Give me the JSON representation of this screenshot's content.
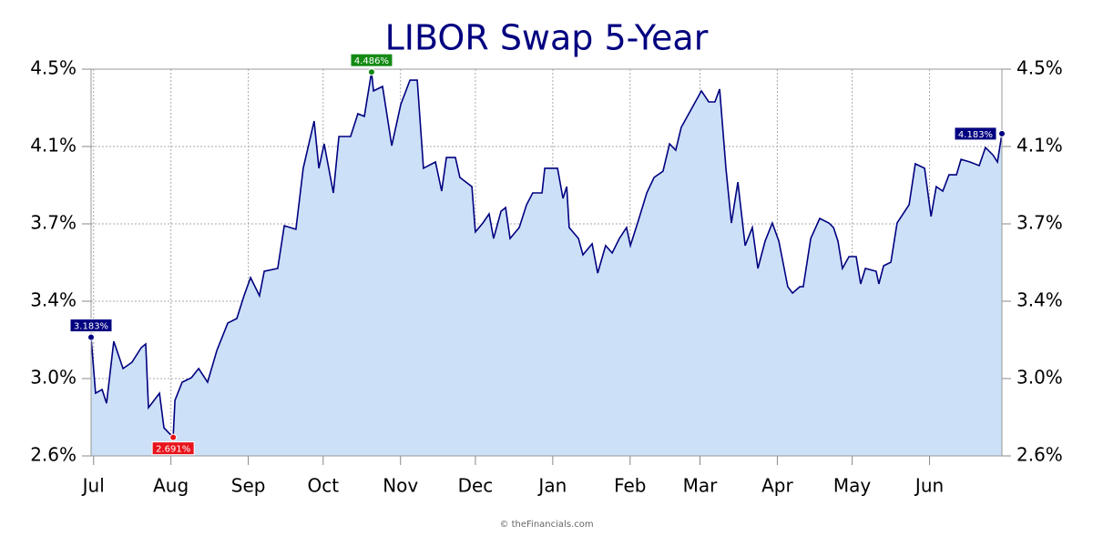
{
  "chart_data": {
    "type": "area",
    "title": "LIBOR Swap 5-Year",
    "footer": "© theFinancials.com",
    "color": "#000080",
    "fill": "#cce0f7",
    "grid": true,
    "right_axis": true,
    "x": [
      0,
      1.8,
      4.4,
      6.2,
      9.1,
      12.8,
      16.4,
      20.1,
      21.9,
      23.0,
      27.4,
      29.2,
      32.9,
      33.6,
      36.5,
      40.2,
      43.1,
      46.7,
      50.4,
      54.8,
      58.4,
      61.3,
      63.9,
      67.5,
      69.4,
      74.8,
      77.4,
      82.1,
      85.0,
      89.4,
      91.3,
      93.4,
      97.1,
      99.3,
      104.0,
      106.9,
      109.5,
      112.4,
      113.2,
      116.8,
      120.5,
      124.1,
      127.8,
      130.7,
      133.2,
      138.0,
      140.5,
      142.4,
      146.0,
      147.8,
      152.6,
      154.0,
      157.0,
      159.5,
      161.3,
      164.3,
      166.1,
      167.9,
      171.6,
      174.5,
      177.0,
      180.7,
      181.8,
      186.9,
      189.1,
      190.6,
      191.6,
      195.3,
      197.1,
      200.8,
      203.0,
      206.2,
      208.8,
      211.7,
      214.6,
      216.1,
      219.0,
      222.7,
      225.6,
      229.2,
      231.8,
      234.3,
      236.5,
      240.9,
      244.6,
      247.5,
      250.0,
      251.9,
      254.4,
      256.6,
      259.2,
      262.1,
      265.0,
      267.2,
      270.1,
      273.0,
      275.6,
      279.2,
      281.1,
      284.0,
      285.4,
      288.4,
      292.0,
      295.7,
      297.5,
      299.3,
      301.1,
      303.7,
      306.6,
      308.4,
      310.3,
      314.6,
      315.7,
      317.6,
      320.5,
      323.0,
      327.8,
      330.3,
      334.0,
      336.6,
      338.7,
      341.3,
      343.8,
      346.8,
      348.6,
      352.2,
      355.9,
      358.4,
      361.4,
      363.2,
      365.0
    ],
    "values": [
      3.183,
      2.908,
      2.926,
      2.859,
      3.163,
      3.029,
      3.06,
      3.132,
      3.15,
      2.837,
      2.908,
      2.738,
      2.691,
      2.873,
      2.962,
      2.984,
      3.029,
      2.962,
      3.118,
      3.253,
      3.275,
      3.387,
      3.476,
      3.387,
      3.507,
      3.521,
      3.731,
      3.713,
      4.013,
      4.245,
      4.013,
      4.133,
      3.892,
      4.169,
      4.169,
      4.281,
      4.268,
      4.486,
      4.393,
      4.415,
      4.124,
      4.326,
      4.446,
      4.446,
      4.013,
      4.044,
      3.901,
      4.066,
      4.066,
      3.968,
      3.923,
      3.7,
      3.744,
      3.789,
      3.668,
      3.802,
      3.82,
      3.668,
      3.722,
      3.834,
      3.892,
      3.892,
      4.013,
      4.013,
      3.865,
      3.923,
      3.722,
      3.668,
      3.588,
      3.642,
      3.498,
      3.633,
      3.597,
      3.668,
      3.722,
      3.633,
      3.744,
      3.892,
      3.968,
      3.999,
      4.133,
      4.102,
      4.214,
      4.312,
      4.393,
      4.339,
      4.339,
      4.402,
      4.013,
      3.744,
      3.945,
      3.633,
      3.722,
      3.521,
      3.655,
      3.744,
      3.655,
      3.431,
      3.4,
      3.431,
      3.431,
      3.668,
      3.767,
      3.744,
      3.722,
      3.655,
      3.521,
      3.579,
      3.579,
      3.445,
      3.521,
      3.507,
      3.445,
      3.534,
      3.552,
      3.744,
      3.834,
      4.035,
      4.013,
      3.776,
      3.923,
      3.901,
      3.981,
      3.981,
      4.057,
      4.044,
      4.026,
      4.115,
      4.079,
      4.044,
      4.183
    ],
    "xlim": [
      0,
      365
    ],
    "xticks": [
      {
        "value": 1,
        "label": "Jul"
      },
      {
        "value": 32,
        "label": "Aug"
      },
      {
        "value": 63,
        "label": "Sep"
      },
      {
        "value": 93,
        "label": "Oct"
      },
      {
        "value": 124,
        "label": "Nov"
      },
      {
        "value": 154,
        "label": "Dec"
      },
      {
        "value": 185,
        "label": "Jan"
      },
      {
        "value": 216,
        "label": "Feb"
      },
      {
        "value": 244,
        "label": "Mar"
      },
      {
        "value": 275,
        "label": "Apr"
      },
      {
        "value": 305,
        "label": "May"
      },
      {
        "value": 336,
        "label": "Jun"
      }
    ],
    "ylim": [
      2.6,
      4.5
    ],
    "yticks": [
      {
        "value": 2.6,
        "label": "2.6%"
      },
      {
        "value": 2.98,
        "label": "3.0%"
      },
      {
        "value": 3.36,
        "label": "3.4%"
      },
      {
        "value": 3.74,
        "label": "3.7%"
      },
      {
        "value": 4.12,
        "label": "4.1%"
      },
      {
        "value": 4.5,
        "label": "4.5%"
      }
    ],
    "annotations": [
      {
        "x": 0,
        "value": 3.183,
        "label": "3.183%",
        "color": "#000080"
      },
      {
        "x": 32.9,
        "value": 2.691,
        "label": "2.691%",
        "color": "#e8141c"
      },
      {
        "x": 112.4,
        "value": 4.486,
        "label": "4.486%",
        "color": "#138a13"
      },
      {
        "x": 365.0,
        "value": 4.183,
        "label": "4.183%",
        "color": "#000080"
      }
    ]
  }
}
